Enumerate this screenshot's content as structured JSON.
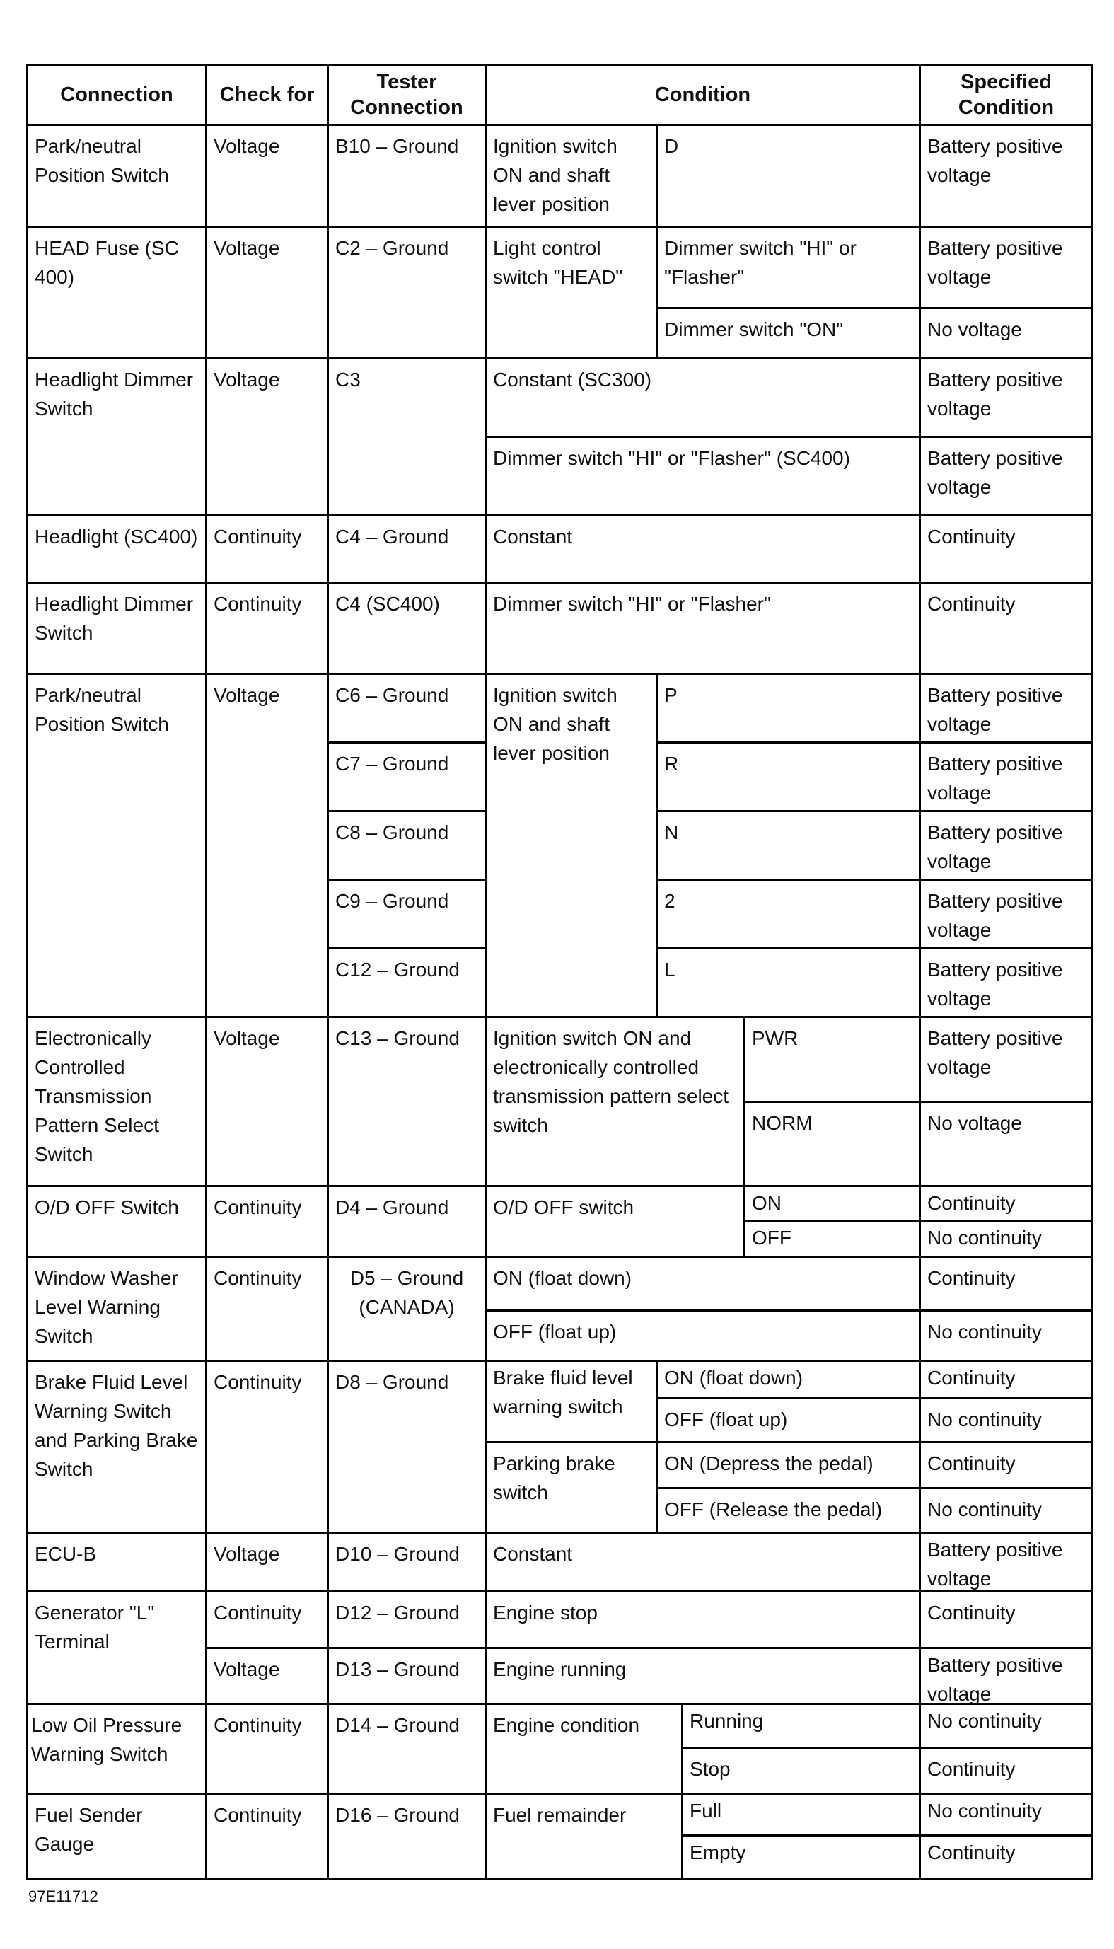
{
  "header": {
    "connection": "Connection",
    "check_for": "Check for",
    "tester_connection": "Tester Connection",
    "condition": "Condition",
    "specified_condition": "Specified Condition"
  },
  "rows": [
    {
      "connection": "Park/neutral Position Switch",
      "check_for": "Voltage",
      "tester": "B10 – Ground",
      "condition": "Ignition switch ON and shaft lever position",
      "sub": [
        {
          "condition": "D",
          "specified": "Battery positive voltage"
        }
      ]
    },
    {
      "connection": "HEAD Fuse (SC 400)",
      "check_for": "Voltage",
      "tester": "C2 – Ground",
      "condition": "Light control switch \"HEAD\"",
      "sub": [
        {
          "condition": "Dimmer switch \"HI\" or \"Flasher\"",
          "specified": "Battery positive voltage"
        },
        {
          "condition": "Dimmer switch \"ON\"",
          "specified": "No voltage"
        }
      ]
    },
    {
      "connection": "Headlight Dimmer Switch",
      "check_for": "Voltage",
      "tester": "C3",
      "sub": [
        {
          "condition": "Constant (SC300)",
          "specified": "Battery positive voltage"
        },
        {
          "condition": "Dimmer switch \"HI\" or \"Flasher\" (SC400)",
          "specified": "Battery positive voltage"
        }
      ]
    },
    {
      "connection": "Headlight (SC400)",
      "check_for": "Continuity",
      "tester": "C4 – Ground",
      "condition": "Constant",
      "specified": "Continuity"
    },
    {
      "connection": "Headlight Dimmer Switch",
      "check_for": "Continuity",
      "tester": "C4 (SC400)",
      "condition": "Dimmer switch \"HI\" or \"Flasher\"",
      "specified": "Continuity"
    },
    {
      "connection": "Park/neutral Position Switch",
      "check_for": "Voltage",
      "condition": "Ignition switch ON and shaft lever position",
      "sub": [
        {
          "tester": "C6 – Ground",
          "condition": "P",
          "specified": "Battery positive voltage"
        },
        {
          "tester": "C7 – Ground",
          "condition": "R",
          "specified": "Battery positive voltage"
        },
        {
          "tester": "C8 – Ground",
          "condition": "N",
          "specified": "Battery positive voltage"
        },
        {
          "tester": "C9 – Ground",
          "condition": "2",
          "specified": "Battery positive voltage"
        },
        {
          "tester": "C12 – Ground",
          "condition": "L",
          "specified": "Battery positive voltage"
        }
      ]
    },
    {
      "connection": "Electronically Controlled Transmission Pattern Select Switch",
      "check_for": "Voltage",
      "tester": "C13 – Ground",
      "condition": "Ignition switch ON and electronically controlled transmission pattern select switch",
      "sub": [
        {
          "condition": "PWR",
          "specified": "Battery positive voltage"
        },
        {
          "condition": "NORM",
          "specified": "No voltage"
        }
      ]
    },
    {
      "connection": "O/D OFF Switch",
      "check_for": "Continuity",
      "tester": "D4 – Ground",
      "condition": "O/D OFF switch",
      "sub": [
        {
          "condition": "ON",
          "specified": "Continuity"
        },
        {
          "condition": "OFF",
          "specified": "No continuity"
        }
      ]
    },
    {
      "connection": "Window Washer Level Warning Switch",
      "check_for": "Continuity",
      "tester": "D5 – Ground (CANADA)",
      "sub": [
        {
          "condition": "ON (float down)",
          "specified": "Continuity"
        },
        {
          "condition": "OFF (float up)",
          "specified": "No continuity"
        }
      ]
    },
    {
      "connection": "Brake Fluid Level Warning Switch and Parking Brake Switch",
      "check_for": "Continuity",
      "tester": "D8 – Ground",
      "groups": [
        {
          "condition": "Brake fluid level warning switch",
          "sub": [
            {
              "condition": "ON (float down)",
              "specified": "Continuity"
            },
            {
              "condition": "OFF (float up)",
              "specified": "No continuity"
            }
          ]
        },
        {
          "condition": "Parking brake switch",
          "sub": [
            {
              "condition": "ON (Depress the pedal)",
              "specified": "Continuity"
            },
            {
              "condition": "OFF (Release the pedal)",
              "specified": "No continuity"
            }
          ]
        }
      ]
    },
    {
      "connection": "ECU-B",
      "check_for": "Voltage",
      "tester": "D10 – Ground",
      "condition": "Constant",
      "specified": "Battery positive voltage"
    },
    {
      "connection": "Generator \"L\" Terminal",
      "sub": [
        {
          "check_for": "Continuity",
          "tester": "D12 – Ground",
          "condition": "Engine stop",
          "specified": "Continuity"
        },
        {
          "check_for": "Voltage",
          "tester": "D13 – Ground",
          "condition": "Engine running",
          "specified": "Battery positive voltage"
        }
      ]
    },
    {
      "connection": "Low Oil Pressure Warning Switch",
      "check_for": "Continuity",
      "tester": "D14 – Ground",
      "condition": "Engine condition",
      "sub": [
        {
          "condition": "Running",
          "specified": "No continuity"
        },
        {
          "condition": "Stop",
          "specified": "Continuity"
        }
      ]
    },
    {
      "connection": "Fuel Sender Gauge",
      "check_for": "Continuity",
      "tester": "D16 – Ground",
      "condition": "Fuel remainder",
      "sub": [
        {
          "condition": "Full",
          "specified": "No continuity"
        },
        {
          "condition": "Empty",
          "specified": "Continuity"
        }
      ]
    }
  ],
  "figure_code": "97E11712"
}
